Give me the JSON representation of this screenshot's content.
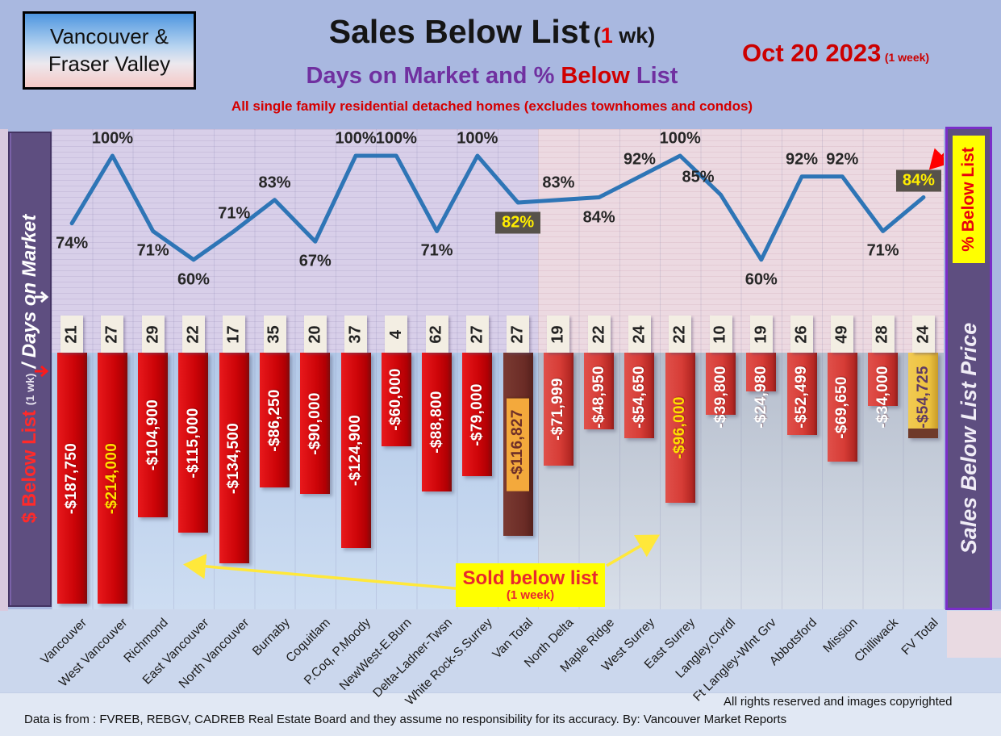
{
  "header": {
    "region_line1": "Vancouver &",
    "region_line2": "Fraser Valley",
    "title": "Sales Below List",
    "title_paren_open": "(",
    "title_week_num": "1",
    "title_paren_rest": " wk)",
    "subtitle_part1": "Days on Market and % ",
    "subtitle_part2": "Below",
    "subtitle_part3": " List",
    "subtitle2": "All single family residential detached homes (excludes townhomes and condos)",
    "date": "Oct 20  2023",
    "date_suffix": "(1 week)"
  },
  "left_axis": {
    "part1": "$ Below List",
    "part2": "(1 wk)",
    "part3": "/ Days on Market"
  },
  "right_axis": {
    "top": "% Below List",
    "bottom": "Sales Below List Price"
  },
  "annotation": {
    "line1": "Sold below list",
    "line2": "(1 week)"
  },
  "footer": {
    "rights": "All rights reserved and  images copyrighted",
    "source": "Data is from : FVREB, REBGV, CADREB Real Estate Board and they assume no responsibility for its accuracy. By: Vancouver Market Reports"
  },
  "chart_data": {
    "type": "combo",
    "categories": [
      "Vancouver",
      "West Vancouver",
      "Richmond",
      "East Vancouver",
      "North Vancouver",
      "Burnaby",
      "Coquitlam",
      "P.Coq, P.Moody",
      "NewWest-E.Burn",
      "Delta-Ladner-Twsn",
      "White Rock-S.Surrey",
      "Van Total",
      "North Delta",
      "Maple Ridge",
      "West Surrey",
      "East Surrey",
      "Langley,Clvrdl",
      "Ft Langley-Wlnt Grv",
      "Abbotsford",
      "Mission",
      "Chilliwack",
      "FV Total"
    ],
    "series": [
      {
        "name": "Days on Market",
        "values": [
          21,
          27,
          29,
          22,
          17,
          35,
          20,
          37,
          4,
          62,
          27,
          27,
          19,
          22,
          24,
          22,
          10,
          19,
          26,
          49,
          28,
          24
        ]
      },
      {
        "name": "$ Below List",
        "values": [
          -187750,
          -214000,
          -104900,
          -115000,
          -134500,
          -86250,
          -90000,
          -124900,
          -60000,
          -88800,
          -79000,
          -116827,
          -71999,
          -48950,
          -54650,
          -96000,
          -39800,
          -24980,
          -52499,
          -69650,
          -34000,
          -54725
        ]
      },
      {
        "name": "% Below List",
        "values": [
          74,
          100,
          71,
          60,
          71,
          83,
          67,
          100,
          100,
          71,
          100,
          82,
          83,
          84,
          92,
          100,
          85,
          60,
          92,
          92,
          71,
          84
        ]
      }
    ],
    "bar_labels": [
      "-$187,750",
      "-$214,000",
      "-$104,900",
      "-$115,000",
      "-$134,500",
      "-$86,250",
      "-$90,000",
      "-$124,900",
      "-$60,000",
      "-$88,800",
      "-$79,000",
      "-$116,827",
      "-$71,999",
      "-$48,950",
      "-$54,650",
      "-$96,000",
      "-$39,800",
      "-$24,980",
      "-$52,499",
      "-$69,650",
      "-$34,000",
      "-$54,725"
    ],
    "pct_labels": [
      "74%",
      "100%",
      "71%",
      "60%",
      "71%",
      "83%",
      "67%",
      "100%",
      "100%",
      "71%",
      "100%",
      "82%",
      "83%",
      "84%",
      "92%",
      "100%",
      "85%",
      "60%",
      "92%",
      "92%",
      "71%",
      "84%"
    ],
    "bar_types": [
      "van",
      "van",
      "van",
      "van",
      "van",
      "van",
      "van",
      "van",
      "van",
      "van",
      "van",
      "vanTotal",
      "fv",
      "fv",
      "fv",
      "fv",
      "fv",
      "fv",
      "fv",
      "fv",
      "fv",
      "fvTotal"
    ],
    "bar_text_color_overrides": {
      "1": "#ffe100",
      "15": "#ffe100"
    },
    "pct_label_pos": [
      "b",
      "a",
      "b",
      "b",
      "a",
      "a",
      "b",
      "a",
      "a",
      "b",
      "a",
      "B",
      "a",
      "b",
      "a",
      "a",
      "a",
      "b",
      "a",
      "a",
      "b",
      "A"
    ],
    "pct_label_dx": {
      "16": -28,
      "21": -6
    },
    "line_color": "#2e75b6",
    "ylim_pct": [
      60,
      100
    ],
    "grid": true,
    "colors": {
      "van_bar": "#cd0408",
      "fv_bar": "#d63c36",
      "van_total_bar": "#6b2c26",
      "fv_total_bar": "#ecc23e",
      "pct_box_bg": "#57524a",
      "pct_box_text": "#ffee00"
    }
  }
}
